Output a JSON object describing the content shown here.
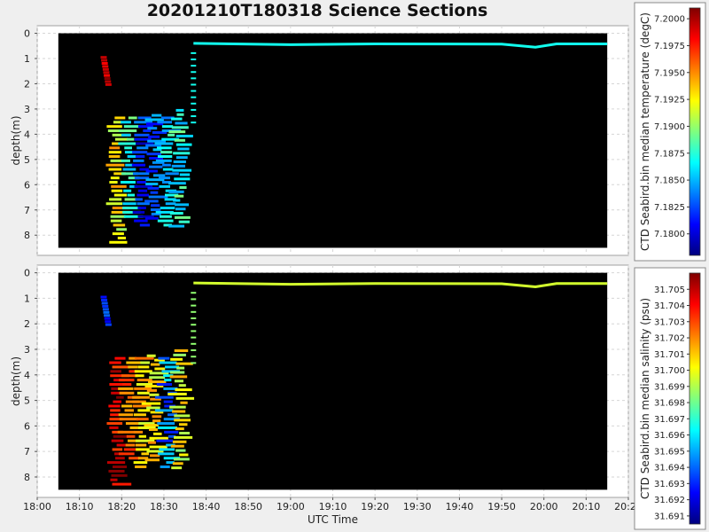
{
  "title": "20201210T180318 Science Sections",
  "colors": {
    "background": "#efefef",
    "plot_background": "#000000",
    "frame": "#a0a0a0",
    "jet": [
      "#00007f",
      "#0000ff",
      "#007fff",
      "#00ffff",
      "#7fff7f",
      "#ffff00",
      "#ff7f00",
      "#ff0000",
      "#7f0000"
    ]
  },
  "chart_data": [
    {
      "type": "heatmap",
      "title": "",
      "xlabel": "",
      "ylabel": "depth(m)",
      "y_inverted": true,
      "ylim": [
        -0.3,
        8.8
      ],
      "yticks": [
        "0",
        "1",
        "2",
        "3",
        "4",
        "5",
        "6",
        "7",
        "8"
      ],
      "xlim": [
        "18:00",
        "20:20"
      ],
      "data_x_range": [
        "18:05",
        "20:15"
      ],
      "colorbar": {
        "label": "CTD Seabird.bin median temperature (degC)",
        "min": 7.178,
        "max": 7.201,
        "ticks": [
          "7.2000",
          "7.1975",
          "7.1950",
          "7.1925",
          "7.1900",
          "7.1875",
          "7.1850",
          "7.1825",
          "7.1800"
        ]
      },
      "surface_track": [
        [
          "18:37",
          0.4
        ],
        [
          "19:00",
          0.45
        ],
        [
          "19:20",
          0.42
        ],
        [
          "19:50",
          0.43
        ],
        [
          "19:58",
          0.55
        ],
        [
          "20:03",
          0.42
        ],
        [
          "20:15",
          0.42
        ]
      ],
      "surface_value": 7.187,
      "profile_summary": [
        {
          "segment": "descent_start",
          "time": "18:15",
          "depth_range": [
            0.9,
            2.0
          ],
          "value": 7.1995
        },
        {
          "segment": "band_18:19",
          "depth_range": [
            3.3,
            8.3
          ],
          "value": 7.1925
        },
        {
          "segment": "band_18:22",
          "depth_range": [
            3.3,
            7.3
          ],
          "value": 7.1875
        },
        {
          "segment": "band_18:25",
          "depth_range": [
            3.3,
            7.6
          ],
          "value": 7.1815
        },
        {
          "segment": "band_18:28",
          "depth_range": [
            3.2,
            7.4
          ],
          "value": 7.183
        },
        {
          "segment": "band_18:31",
          "depth_range": [
            3.3,
            7.6
          ],
          "value": 7.186
        },
        {
          "segment": "band_18:34",
          "depth_range": [
            3.0,
            7.6
          ],
          "value": 7.187
        },
        {
          "segment": "ascent_18:37",
          "depth_range": [
            0.4,
            3.5
          ],
          "value": 7.187
        }
      ]
    },
    {
      "type": "heatmap",
      "title": "",
      "xlabel": "UTC Time",
      "ylabel": "depth(m)",
      "y_inverted": true,
      "ylim": [
        -0.3,
        8.8
      ],
      "yticks": [
        "0",
        "1",
        "2",
        "3",
        "4",
        "5",
        "6",
        "7",
        "8"
      ],
      "xlim": [
        "18:00",
        "20:20"
      ],
      "xticks": [
        "18:00",
        "18:10",
        "18:20",
        "18:30",
        "18:40",
        "18:50",
        "19:00",
        "19:10",
        "19:20",
        "19:30",
        "19:40",
        "19:50",
        "20:00",
        "20:10",
        "20:20"
      ],
      "data_x_range": [
        "18:05",
        "20:15"
      ],
      "colorbar": {
        "label": "CTD Seabird.bin median salinity (psu)",
        "min": 31.6905,
        "max": 31.706,
        "ticks": [
          "31.705",
          "31.704",
          "31.703",
          "31.702",
          "31.701",
          "31.700",
          "31.699",
          "31.698",
          "31.697",
          "31.696",
          "31.695",
          "31.694",
          "31.693",
          "31.692",
          "31.691"
        ]
      },
      "surface_track": [
        [
          "18:37",
          0.4
        ],
        [
          "19:00",
          0.45
        ],
        [
          "19:20",
          0.42
        ],
        [
          "19:50",
          0.43
        ],
        [
          "19:58",
          0.55
        ],
        [
          "20:03",
          0.42
        ],
        [
          "20:15",
          0.42
        ]
      ],
      "surface_value": 31.6995,
      "profile_summary": [
        {
          "segment": "descent_start",
          "time": "18:15",
          "depth_range": [
            0.9,
            2.0
          ],
          "value": 31.693
        },
        {
          "segment": "band_18:19",
          "depth_range": [
            3.3,
            8.3
          ],
          "value": 31.7045
        },
        {
          "segment": "band_18:22",
          "depth_range": [
            3.3,
            7.3
          ],
          "value": 31.7025
        },
        {
          "segment": "band_18:25",
          "depth_range": [
            3.3,
            7.6
          ],
          "value": 31.701
        },
        {
          "segment": "band_18:28",
          "depth_range": [
            3.2,
            7.4
          ],
          "value": 31.7005
        },
        {
          "segment": "band_18:31",
          "depth_range": [
            3.3,
            7.6
          ],
          "value": 31.6945
        },
        {
          "segment": "band_18:34",
          "depth_range": [
            3.0,
            7.6
          ],
          "value": 31.7
        },
        {
          "segment": "ascent_18:37",
          "depth_range": [
            0.4,
            3.5
          ],
          "value": 31.6985
        }
      ]
    }
  ]
}
